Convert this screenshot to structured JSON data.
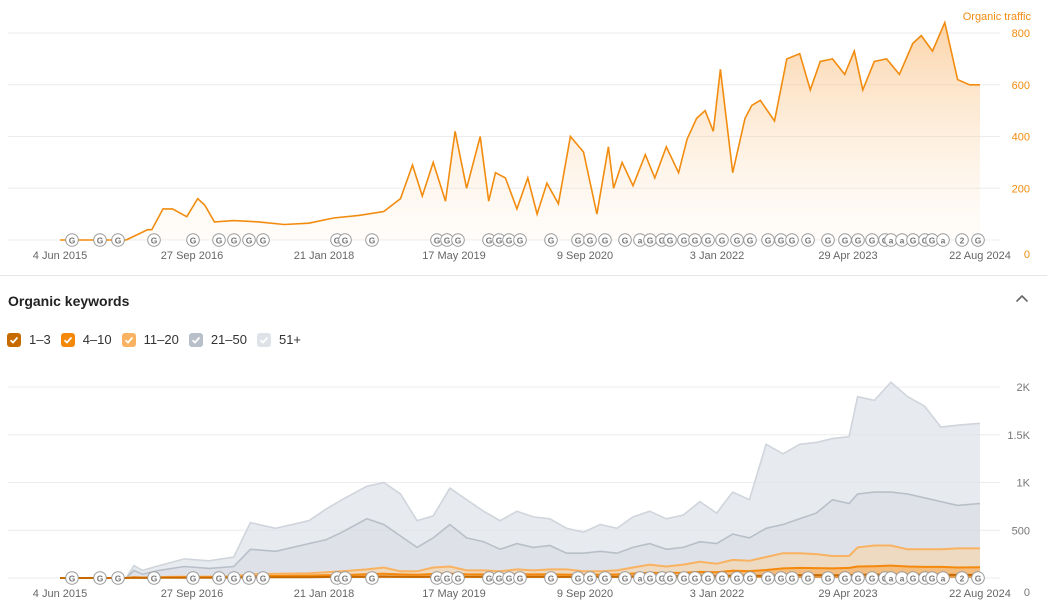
{
  "colors": {
    "traffic": "#f28c0f",
    "axis_text_orange": "#f28c0f",
    "grid": "#ececec",
    "k1_3": "#c76a00",
    "k4_10": "#f5890c",
    "k11_20": "#f9b261",
    "k21_50": "#b9bfc8",
    "k51": "#dfe3e9"
  },
  "traffic_chart": {
    "series_label": "Organic traffic",
    "x_ticks": [
      "4 Jun 2015",
      "27 Sep 2016",
      "21 Jan 2018",
      "17 May 2019",
      "9 Sep 2020",
      "3 Jan 2022",
      "29 Apr 2023",
      "22 Aug 2024"
    ],
    "y_ticks": [
      "800",
      "600",
      "400",
      "200",
      "0"
    ],
    "markers": [
      "G",
      "G",
      "G",
      "G",
      "G",
      "G",
      "G",
      "G",
      "G",
      "G",
      "G",
      "G",
      "G",
      "G",
      "G",
      "G",
      "G",
      "G",
      "G",
      "G",
      "G",
      "G",
      "G",
      "G",
      "a",
      "G",
      "G",
      "G",
      "G",
      "G",
      "G",
      "G",
      "G",
      "G",
      "G",
      "G",
      "G",
      "G",
      "G",
      "G",
      "G",
      "G",
      "G",
      "a",
      "a",
      "G",
      "G",
      "G",
      "a",
      "2",
      "G",
      "2"
    ]
  },
  "keywords_section": {
    "title": "Organic keywords",
    "legend": [
      {
        "label": "1–3",
        "color": "#c76a00"
      },
      {
        "label": "4–10",
        "color": "#f5890c"
      },
      {
        "label": "11–20",
        "color": "#f9b261"
      },
      {
        "label": "21–50",
        "color": "#b9bfc8"
      },
      {
        "label": "51+",
        "color": "#dfe3e9"
      }
    ]
  },
  "keywords_chart": {
    "x_ticks": [
      "4 Jun 2015",
      "27 Sep 2016",
      "21 Jan 2018",
      "17 May 2019",
      "9 Sep 2020",
      "3 Jan 2022",
      "29 Apr 2023",
      "22 Aug 2024"
    ],
    "y_ticks": [
      "2K",
      "1.5K",
      "1K",
      "500",
      "0"
    ]
  },
  "chart_data": [
    {
      "type": "area",
      "title": "Organic traffic",
      "x_range": [
        "2015-06-04",
        "2024-08-22"
      ],
      "ylim": [
        0,
        800
      ],
      "grid": true,
      "series": [
        {
          "name": "Organic traffic",
          "x": [
            "2015-06-04",
            "2016-02-01",
            "2016-04-20",
            "2016-05-05",
            "2016-06-15",
            "2016-07-20",
            "2016-09-10",
            "2016-10-20",
            "2016-11-15",
            "2016-12-20",
            "2017-03-01",
            "2017-06-01",
            "2017-09-01",
            "2017-12-01",
            "2018-03-01",
            "2018-06-01",
            "2018-09-01",
            "2018-11-01",
            "2018-12-15",
            "2019-01-20",
            "2019-03-01",
            "2019-04-15",
            "2019-05-20",
            "2019-07-01",
            "2019-08-20",
            "2019-09-20",
            "2019-10-15",
            "2019-11-20",
            "2020-01-01",
            "2020-02-10",
            "2020-03-15",
            "2020-04-20",
            "2020-06-01",
            "2020-07-15",
            "2020-09-01",
            "2020-10-20",
            "2020-12-01",
            "2020-12-20",
            "2021-01-20",
            "2021-03-01",
            "2021-04-15",
            "2021-05-20",
            "2021-07-01",
            "2021-08-15",
            "2021-09-15",
            "2021-10-20",
            "2021-11-20",
            "2021-12-20",
            "2022-01-15",
            "2022-03-01",
            "2022-04-15",
            "2022-05-10",
            "2022-06-10",
            "2022-08-01",
            "2022-09-15",
            "2022-11-01",
            "2022-12-10",
            "2023-01-15",
            "2023-03-01",
            "2023-04-15",
            "2023-05-20",
            "2023-06-20",
            "2023-08-01",
            "2023-09-15",
            "2023-11-01",
            "2023-12-20",
            "2024-01-20",
            "2024-03-01",
            "2024-04-15",
            "2024-06-01",
            "2024-07-15",
            "2024-08-22"
          ],
          "values": [
            0,
            0,
            40,
            40,
            120,
            120,
            90,
            160,
            135,
            70,
            75,
            70,
            60,
            65,
            85,
            95,
            110,
            160,
            290,
            170,
            300,
            150,
            420,
            200,
            400,
            150,
            260,
            240,
            120,
            240,
            100,
            220,
            140,
            400,
            340,
            100,
            360,
            200,
            300,
            210,
            330,
            240,
            360,
            260,
            390,
            470,
            500,
            420,
            660,
            260,
            470,
            520,
            540,
            460,
            700,
            720,
            580,
            690,
            700,
            640,
            730,
            580,
            690,
            700,
            640,
            760,
            790,
            730,
            840,
            620,
            600,
            600
          ]
        }
      ]
    },
    {
      "type": "area",
      "title": "Organic keywords",
      "x_range": [
        "2015-06-04",
        "2024-08-22"
      ],
      "ylim": [
        0,
        2000
      ],
      "grid": true,
      "x": [
        "2015-06-04",
        "2016-02-01",
        "2016-03-01",
        "2016-04-01",
        "2016-06-01",
        "2016-09-01",
        "2016-12-01",
        "2017-03-01",
        "2017-05-01",
        "2017-08-01",
        "2017-12-01",
        "2018-02-01",
        "2018-04-01",
        "2018-07-01",
        "2018-09-01",
        "2018-11-01",
        "2019-01-01",
        "2019-03-01",
        "2019-05-01",
        "2019-07-01",
        "2019-09-01",
        "2019-11-01",
        "2020-01-01",
        "2020-03-01",
        "2020-05-01",
        "2020-07-01",
        "2020-09-01",
        "2020-11-01",
        "2021-01-01",
        "2021-03-01",
        "2021-05-01",
        "2021-07-01",
        "2021-09-01",
        "2021-11-01",
        "2022-01-01",
        "2022-03-01",
        "2022-05-01",
        "2022-07-01",
        "2022-09-01",
        "2022-11-01",
        "2023-01-01",
        "2023-03-01",
        "2023-05-01",
        "2023-06-01",
        "2023-08-01",
        "2023-10-01",
        "2023-12-01",
        "2024-02-01",
        "2024-04-01",
        "2024-06-01",
        "2024-08-22"
      ],
      "series": [
        {
          "name": "51+",
          "values": [
            0,
            0,
            130,
            80,
            130,
            200,
            180,
            220,
            580,
            520,
            600,
            720,
            820,
            960,
            1000,
            880,
            600,
            650,
            940,
            820,
            700,
            600,
            700,
            640,
            620,
            520,
            480,
            560,
            520,
            640,
            700,
            620,
            660,
            800,
            680,
            900,
            820,
            1400,
            1300,
            1400,
            1420,
            1460,
            1480,
            1900,
            1860,
            2050,
            1900,
            1800,
            1580,
            1600,
            1620
          ]
        },
        {
          "name": "21–50",
          "values": [
            0,
            0,
            80,
            40,
            80,
            120,
            100,
            120,
            300,
            280,
            360,
            400,
            480,
            620,
            560,
            440,
            320,
            420,
            560,
            420,
            380,
            300,
            360,
            320,
            340,
            260,
            260,
            280,
            260,
            320,
            360,
            300,
            320,
            380,
            360,
            460,
            420,
            520,
            560,
            620,
            680,
            820,
            780,
            880,
            900,
            900,
            880,
            840,
            800,
            760,
            780
          ]
        },
        {
          "name": "11–20",
          "values": [
            0,
            0,
            10,
            5,
            10,
            15,
            15,
            20,
            40,
            45,
            50,
            60,
            70,
            90,
            110,
            70,
            70,
            110,
            120,
            80,
            80,
            70,
            90,
            80,
            90,
            90,
            70,
            70,
            80,
            110,
            140,
            120,
            140,
            170,
            150,
            190,
            180,
            220,
            260,
            260,
            250,
            230,
            230,
            320,
            340,
            340,
            300,
            300,
            300,
            310,
            310
          ]
        },
        {
          "name": "4–10",
          "values": [
            0,
            0,
            5,
            3,
            5,
            8,
            8,
            10,
            20,
            22,
            25,
            28,
            30,
            40,
            45,
            38,
            34,
            42,
            46,
            40,
            38,
            34,
            40,
            38,
            40,
            36,
            34,
            36,
            38,
            46,
            56,
            52,
            56,
            64,
            60,
            76,
            72,
            84,
            100,
            106,
            104,
            100,
            106,
            120,
            124,
            130,
            120,
            116,
            116,
            110,
            112
          ]
        },
        {
          "name": "1–3",
          "values": [
            0,
            0,
            2,
            1,
            2,
            3,
            3,
            4,
            6,
            8,
            8,
            10,
            12,
            14,
            16,
            14,
            12,
            14,
            16,
            14,
            14,
            12,
            14,
            14,
            14,
            12,
            12,
            14,
            14,
            16,
            18,
            18,
            20,
            22,
            22,
            24,
            22,
            24,
            28,
            30,
            30,
            28,
            30,
            34,
            36,
            38,
            36,
            34,
            34,
            32,
            32
          ]
        }
      ]
    }
  ]
}
